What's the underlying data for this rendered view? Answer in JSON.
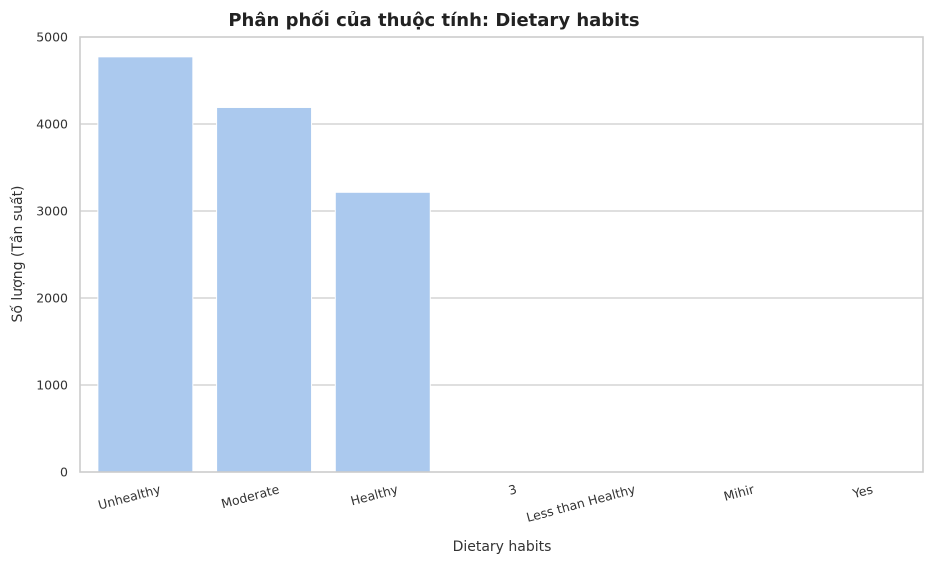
{
  "chart_data": {
    "type": "bar",
    "title": "Phân phối của thuộc tính: Dietary habits",
    "xlabel": "Dietary habits",
    "ylabel": "Số lượng (Tần suất)",
    "categories": [
      "Unhealthy",
      "Moderate",
      "Healthy",
      "3",
      "Less than Healthy",
      "Mihir",
      "Yes"
    ],
    "values": [
      4772,
      4190,
      3215,
      1,
      1,
      1,
      1
    ],
    "ylim": [
      0,
      5000
    ],
    "yticks": [
      0,
      1000,
      2000,
      3000,
      4000,
      5000
    ],
    "grid": "y",
    "bar_color": "#abc9ee",
    "grid_color": "#cccccc",
    "legend": "none"
  }
}
